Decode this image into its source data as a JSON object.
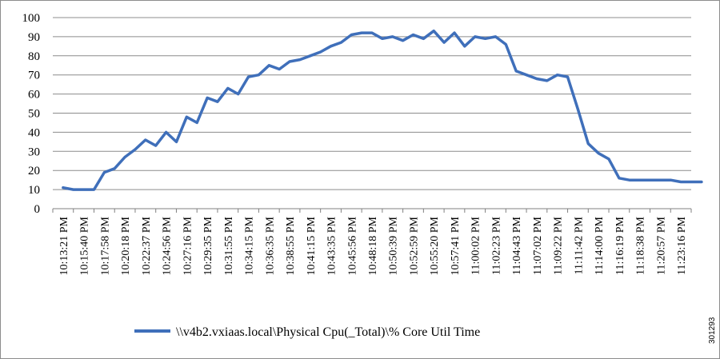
{
  "chart_data": {
    "type": "line",
    "title": "",
    "xlabel": "",
    "ylabel": "",
    "ylim": [
      0,
      100
    ],
    "yticks": [
      0,
      10,
      20,
      30,
      40,
      50,
      60,
      70,
      80,
      90,
      100
    ],
    "xtick_labels": [
      "10:13:21 PM",
      "10:15:40 PM",
      "10:17:58 PM",
      "10:20:18 PM",
      "10:22:37 PM",
      "10:24:56 PM",
      "10:27:16 PM",
      "10:29:35 PM",
      "10:31:55 PM",
      "10:34:15 PM",
      "10:36:35 PM",
      "10:38:55 PM",
      "10:41:15 PM",
      "10:43:35 PM",
      "10:45:56 PM",
      "10:48:18 PM",
      "10:50:39 PM",
      "10:52:59 PM",
      "10:55:20 PM",
      "10:57:41 PM",
      "11:00:02 PM",
      "11:02:23 PM",
      "11:04:43 PM",
      "11:07:02 PM",
      "11:09:22 PM",
      "11:11:42 PM",
      "11:14:00 PM",
      "11:16:19 PM",
      "11:18:38 PM",
      "11:20:57 PM",
      "11:23:16 PM"
    ],
    "grid": true,
    "legend_position": "bottom",
    "series": [
      {
        "name": "\\\\v4b2.vxiaas.local\\Physical Cpu(_Total)\\% Core Util Time",
        "color": "#3f6fba",
        "x": [
          0,
          0.5,
          1,
          1.5,
          2,
          2.5,
          3,
          3.5,
          4,
          4.5,
          5,
          5.5,
          6,
          6.5,
          7,
          7.5,
          8,
          8.5,
          9,
          9.5,
          10,
          10.5,
          11,
          11.5,
          12,
          12.5,
          13,
          13.5,
          14,
          14.5,
          15,
          15.5,
          16,
          16.5,
          17,
          17.5,
          18,
          18.5,
          19,
          19.5,
          20,
          20.5,
          21,
          21.5,
          22,
          22.5,
          23,
          23.5,
          24,
          24.5,
          25,
          25.5,
          26,
          26.5,
          27,
          27.5,
          28,
          28.5,
          29,
          29.5,
          30,
          30.5,
          31
        ],
        "values": [
          11,
          10,
          10,
          10,
          19,
          21,
          27,
          31,
          36,
          33,
          40,
          35,
          48,
          45,
          58,
          56,
          63,
          60,
          69,
          70,
          75,
          73,
          77,
          78,
          80,
          82,
          85,
          87,
          91,
          92,
          92,
          89,
          90,
          88,
          91,
          89,
          93,
          87,
          92,
          85,
          90,
          89,
          90,
          86,
          72,
          70,
          68,
          67,
          70,
          69,
          52,
          34,
          29,
          26,
          16,
          15,
          15,
          15,
          15,
          15,
          14,
          14,
          14
        ]
      }
    ],
    "watermark": "301293"
  }
}
